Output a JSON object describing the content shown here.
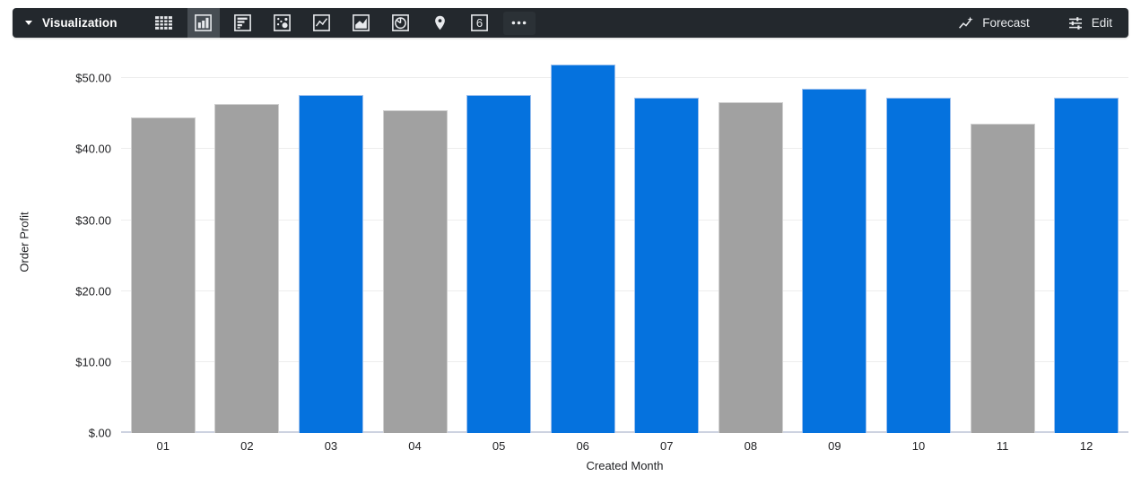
{
  "toolbar": {
    "title": "Visualization",
    "viz_types": [
      {
        "name": "table",
        "selected": false
      },
      {
        "name": "column",
        "selected": true
      },
      {
        "name": "bar",
        "selected": false
      },
      {
        "name": "scatter",
        "selected": false
      },
      {
        "name": "line",
        "selected": false
      },
      {
        "name": "area",
        "selected": false
      },
      {
        "name": "pie",
        "selected": false
      },
      {
        "name": "map",
        "selected": false
      },
      {
        "name": "single-value",
        "selected": false,
        "glyph": "6"
      },
      {
        "name": "more",
        "selected": false
      }
    ],
    "actions": [
      {
        "label": "Forecast",
        "icon": "forecast-sparkline-icon"
      },
      {
        "label": "Edit",
        "icon": "tune-sliders-icon"
      }
    ],
    "colors": {
      "background": "#23282D",
      "selected_background": "#474D53",
      "icon": "#E8EAED"
    }
  },
  "chart_data": {
    "type": "bar",
    "title": "",
    "xlabel": "Created Month",
    "ylabel": "Order Profit",
    "categories": [
      "01",
      "02",
      "03",
      "04",
      "05",
      "06",
      "07",
      "08",
      "09",
      "10",
      "11",
      "12"
    ],
    "values": [
      44.5,
      46.4,
      47.6,
      45.5,
      47.6,
      51.9,
      47.2,
      46.6,
      48.5,
      47.2,
      43.6,
      47.3
    ],
    "bar_series": [
      "gray",
      "gray",
      "blue",
      "gray",
      "blue",
      "blue",
      "blue",
      "gray",
      "blue",
      "blue",
      "gray",
      "blue"
    ],
    "palette": {
      "blue": {
        "fill": "#0572DE",
        "border": "#9CC0EE"
      },
      "gray": {
        "fill": "#A1A1A1",
        "border": "#CFCFCF"
      }
    },
    "y_ticks": [
      {
        "label": "$.00",
        "value": 0
      },
      {
        "label": "$10.00",
        "value": 10
      },
      {
        "label": "$20.00",
        "value": 20
      },
      {
        "label": "$30.00",
        "value": 30
      },
      {
        "label": "$40.00",
        "value": 40
      },
      {
        "label": "$50.00",
        "value": 50
      }
    ],
    "ylim": [
      0,
      53.7
    ],
    "grid": true,
    "legend": "none"
  }
}
